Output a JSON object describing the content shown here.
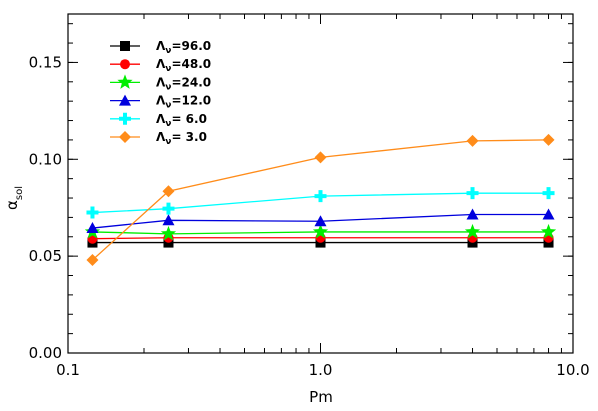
{
  "chart_data": {
    "type": "line",
    "xlabel": "Pm",
    "ylabel": "α",
    "ylabel_sub": "sol",
    "x_scale": "log",
    "xlim": [
      0.1,
      10.0
    ],
    "ylim": [
      0.0,
      0.175
    ],
    "x_ticks": [
      0.1,
      1.0,
      10.0
    ],
    "x_tick_labels": [
      "0.1",
      "1.0",
      "10.0"
    ],
    "y_ticks": [
      0.0,
      0.05,
      0.1,
      0.15
    ],
    "y_tick_labels": [
      "0.00",
      "0.05",
      "0.10",
      "0.15"
    ],
    "grid": false,
    "legend_position": "top-left",
    "x": [
      0.125,
      0.25,
      1.0,
      4.0,
      8.0
    ],
    "series": [
      {
        "name": "Λ",
        "name_sub": "ν",
        "value_label": "=96.0",
        "color": "#000000",
        "marker": "square",
        "values": [
          0.057,
          0.057,
          0.057,
          0.057,
          0.057
        ]
      },
      {
        "name": "Λ",
        "name_sub": "ν",
        "value_label": "=48.0",
        "color": "#ff0000",
        "marker": "circle",
        "values": [
          0.059,
          0.0595,
          0.0595,
          0.0595,
          0.0595
        ]
      },
      {
        "name": "Λ",
        "name_sub": "ν",
        "value_label": "=24.0",
        "color": "#00ee00",
        "marker": "star",
        "values": [
          0.0625,
          0.0615,
          0.0625,
          0.0625,
          0.0625
        ]
      },
      {
        "name": "Λ",
        "name_sub": "ν",
        "value_label": "=12.0",
        "color": "#0000dd",
        "marker": "triangle",
        "values": [
          0.0645,
          0.0685,
          0.068,
          0.0715,
          0.0715
        ]
      },
      {
        "name": "Λ",
        "name_sub": "ν",
        "value_label": "= 6.0",
        "color": "#00ffff",
        "marker": "plus",
        "values": [
          0.0725,
          0.0745,
          0.081,
          0.0825,
          0.0825
        ]
      },
      {
        "name": "Λ",
        "name_sub": "ν",
        "value_label": "= 3.0",
        "color": "#ff8c1a",
        "marker": "diamond",
        "values": [
          0.048,
          0.0835,
          0.101,
          0.1095,
          0.11
        ]
      }
    ]
  }
}
